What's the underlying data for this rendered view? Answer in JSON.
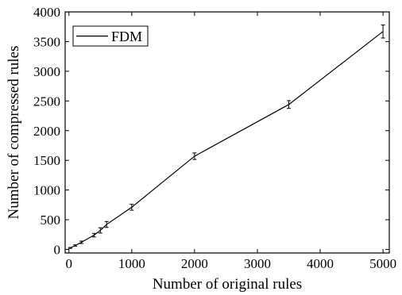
{
  "chart_data": {
    "type": "line",
    "title": "",
    "xlabel": "Number of original rules",
    "ylabel": "Number of compressed rules",
    "xlim": [
      -60,
      5100
    ],
    "ylim": [
      -60,
      4000
    ],
    "xticks": [
      0,
      1000,
      2000,
      3000,
      4000,
      5000
    ],
    "yticks": [
      0,
      500,
      1000,
      1500,
      2000,
      2500,
      3000,
      3500,
      4000
    ],
    "grid": false,
    "legend_position": "top-left",
    "series": [
      {
        "name": "FDM",
        "color": "#000000",
        "x": [
          20,
          100,
          200,
          400,
          500,
          600,
          1000,
          2000,
          3500,
          5000
        ],
        "y": [
          25,
          65,
          120,
          240,
          320,
          420,
          710,
          1570,
          2440,
          3670
        ],
        "err": [
          8,
          12,
          20,
          30,
          45,
          50,
          50,
          55,
          65,
          110
        ]
      }
    ]
  }
}
